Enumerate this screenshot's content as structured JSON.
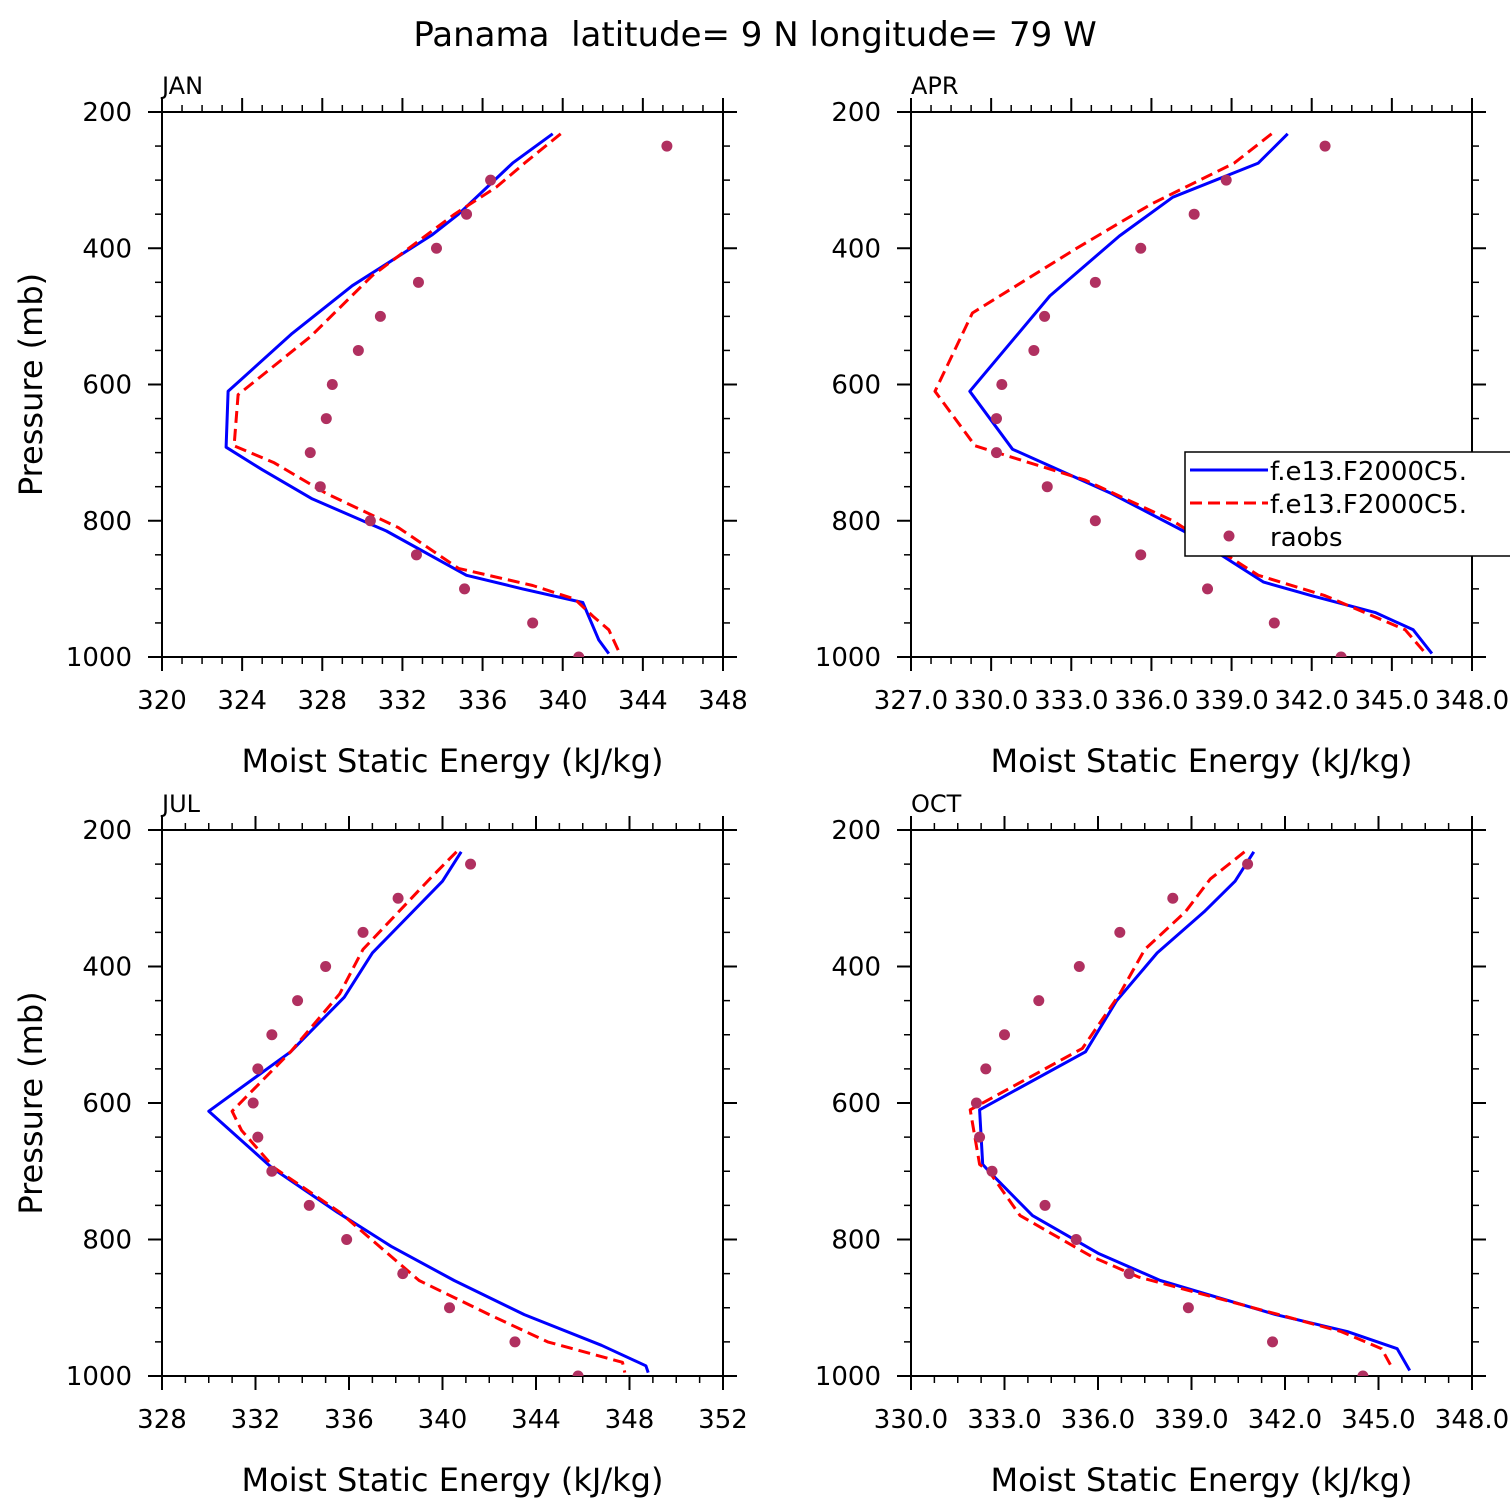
{
  "figure_title": "Panama  latitude= 9 N longitude= 79 W",
  "legend": {
    "entries": [
      {
        "label": "f.e13.F2000C5.",
        "style": "solid",
        "color": "#0000ff"
      },
      {
        "label": "f.e13.F2000C5.",
        "style": "dashed",
        "color": "#ff0000"
      },
      {
        "label": "raobs",
        "style": "dot",
        "color": "#b03060"
      }
    ],
    "placement": "right-middle of APR panel"
  },
  "colors": {
    "model_solid": "#0000ff",
    "model_dashed": "#ff0000",
    "raobs": "#b03060"
  },
  "chart_data": [
    {
      "type": "line",
      "panel_label": "JAN",
      "xlabel": "Moist Static Energy (kJ/kg)",
      "ylabel": "Pressure (mb)",
      "xlim": [
        320,
        348
      ],
      "ylim": [
        1000,
        200
      ],
      "xticks": [
        320,
        324,
        328,
        332,
        336,
        340,
        344,
        348
      ],
      "xtick_labels": [
        "320",
        "324",
        "328",
        "332",
        "336",
        "340",
        "344",
        "348"
      ],
      "yticks": [
        200,
        400,
        600,
        800,
        1000
      ],
      "ytick_labels": [
        "200",
        "400",
        "600",
        "800",
        "1000"
      ],
      "series": [
        {
          "style": "solid",
          "x": [
            339.5,
            337.5,
            334.8,
            333.5,
            329.5,
            326.5,
            323.3,
            323.2,
            325.0,
            327.5,
            331.2,
            335.2,
            338.0,
            341.0,
            341.8,
            342.3
          ],
          "y": [
            232,
            275,
            350,
            380,
            455,
            525,
            610,
            692,
            725,
            768,
            815,
            880,
            900,
            920,
            975,
            995
          ]
        },
        {
          "style": "dashed",
          "x": [
            339.9,
            338.1,
            336.7,
            334.6,
            330.5,
            327.4,
            323.8,
            323.6,
            325.6,
            328.2,
            331.8,
            334.8,
            338.5,
            340.6,
            341.5,
            342.3,
            342.8
          ],
          "y": [
            232,
            275,
            310,
            350,
            440,
            530,
            615,
            690,
            715,
            760,
            810,
            870,
            895,
            915,
            940,
            960,
            992
          ]
        },
        {
          "style": "dot",
          "x": [
            345.2,
            336.4,
            335.2,
            333.7,
            332.8,
            330.9,
            329.8,
            328.5,
            328.2,
            327.4,
            327.9,
            330.4,
            332.7,
            335.1,
            338.5,
            340.8
          ],
          "y": [
            250,
            300,
            350,
            400,
            450,
            500,
            550,
            600,
            650,
            700,
            750,
            800,
            850,
            900,
            950,
            1000
          ]
        }
      ]
    },
    {
      "type": "line",
      "panel_label": "APR",
      "xlabel": "Moist Static Energy (kJ/kg)",
      "ylabel": "",
      "xlim": [
        327.0,
        348.0
      ],
      "ylim": [
        1000,
        200
      ],
      "xticks": [
        327,
        330,
        333,
        336,
        339,
        342,
        345,
        348
      ],
      "xtick_labels": [
        "327.0",
        "330.0",
        "333.0",
        "336.0",
        "339.0",
        "342.0",
        "345.0",
        "348.0"
      ],
      "yticks": [
        200,
        400,
        600,
        800,
        1000
      ],
      "ytick_labels": [
        "200",
        "400",
        "600",
        "800",
        "1000"
      ],
      "series": [
        {
          "style": "solid",
          "x": [
            341.1,
            340.0,
            336.8,
            334.8,
            332.2,
            329.2,
            330.8,
            334.5,
            337.2,
            340.2,
            342.0,
            344.4,
            345.8,
            346.5
          ],
          "y": [
            232,
            275,
            325,
            382,
            470,
            610,
            695,
            760,
            815,
            890,
            910,
            935,
            960,
            995
          ]
        },
        {
          "style": "dashed",
          "x": [
            340.5,
            339.1,
            336.0,
            333.2,
            329.3,
            327.9,
            329.4,
            333.5,
            336.8,
            340.0,
            342.5,
            344.0,
            345.5,
            346.2
          ],
          "y": [
            232,
            275,
            335,
            400,
            495,
            610,
            690,
            740,
            800,
            880,
            910,
            935,
            960,
            992
          ]
        },
        {
          "style": "dot",
          "x": [
            342.5,
            338.8,
            337.6,
            335.6,
            333.9,
            332.0,
            331.6,
            330.4,
            330.2,
            330.2,
            332.1,
            333.9,
            335.6,
            338.1,
            340.6,
            343.1
          ],
          "y": [
            250,
            300,
            350,
            400,
            450,
            500,
            550,
            600,
            650,
            700,
            750,
            800,
            850,
            900,
            950,
            1000
          ]
        }
      ]
    },
    {
      "type": "line",
      "panel_label": "JUL",
      "xlabel": "Moist Static Energy (kJ/kg)",
      "ylabel": "Pressure (mb)",
      "xlim": [
        328,
        352
      ],
      "ylim": [
        1000,
        200
      ],
      "xticks": [
        328,
        332,
        336,
        340,
        344,
        348,
        352
      ],
      "xtick_labels": [
        "328",
        "332",
        "336",
        "340",
        "344",
        "348",
        "352"
      ],
      "yticks": [
        200,
        400,
        600,
        800,
        1000
      ],
      "ytick_labels": [
        "200",
        "400",
        "600",
        "800",
        "1000"
      ],
      "series": [
        {
          "style": "solid",
          "x": [
            340.8,
            340.0,
            337.0,
            335.8,
            333.5,
            330.0,
            332.7,
            335.5,
            337.8,
            340.5,
            343.5,
            346.8,
            348.7,
            348.8
          ],
          "y": [
            232,
            275,
            380,
            445,
            525,
            612,
            695,
            760,
            810,
            860,
            910,
            955,
            985,
            995
          ]
        },
        {
          "style": "dashed",
          "x": [
            340.6,
            339.5,
            336.6,
            335.6,
            333.5,
            331.0,
            331.4,
            332.8,
            335.6,
            339.0,
            342.0,
            344.5,
            347.7,
            347.8
          ],
          "y": [
            232,
            270,
            375,
            440,
            525,
            612,
            640,
            695,
            760,
            860,
            910,
            950,
            980,
            995
          ]
        },
        {
          "style": "dot",
          "x": [
            341.2,
            338.1,
            336.6,
            335.0,
            333.8,
            332.7,
            332.1,
            331.9,
            332.1,
            332.7,
            334.3,
            335.9,
            338.3,
            340.3,
            343.1,
            345.8
          ],
          "y": [
            250,
            300,
            350,
            400,
            450,
            500,
            550,
            600,
            650,
            700,
            750,
            800,
            850,
            900,
            950,
            1000
          ]
        }
      ]
    },
    {
      "type": "line",
      "panel_label": "OCT",
      "xlabel": "Moist Static Energy (kJ/kg)",
      "ylabel": "",
      "xlim": [
        330.0,
        348.0
      ],
      "ylim": [
        1000,
        200
      ],
      "xticks": [
        330,
        333,
        336,
        339,
        342,
        345,
        348
      ],
      "xtick_labels": [
        "330.0",
        "333.0",
        "336.0",
        "339.0",
        "342.0",
        "345.0",
        "348.0"
      ],
      "yticks": [
        200,
        400,
        600,
        800,
        1000
      ],
      "ytick_labels": [
        "200",
        "400",
        "600",
        "800",
        "1000"
      ],
      "series": [
        {
          "style": "solid",
          "x": [
            341.0,
            340.4,
            339.4,
            337.9,
            336.6,
            335.6,
            332.2,
            332.3,
            332.5,
            333.9,
            336.0,
            338.0,
            341.7,
            344.0,
            345.6,
            346.0
          ],
          "y": [
            232,
            275,
            320,
            380,
            450,
            525,
            610,
            690,
            700,
            765,
            820,
            860,
            910,
            935,
            960,
            992
          ]
        },
        {
          "style": "dashed",
          "x": [
            340.7,
            339.6,
            338.8,
            337.5,
            336.7,
            335.5,
            331.9,
            332.2,
            332.5,
            333.5,
            335.8,
            337.3,
            341.8,
            343.8,
            345.1,
            345.4
          ],
          "y": [
            232,
            272,
            320,
            375,
            440,
            520,
            610,
            690,
            700,
            765,
            825,
            855,
            910,
            935,
            960,
            985
          ]
        },
        {
          "style": "dot",
          "x": [
            340.8,
            338.4,
            336.7,
            335.4,
            334.1,
            333.0,
            332.4,
            332.1,
            332.2,
            332.6,
            334.3,
            335.3,
            337.0,
            338.9,
            341.6,
            344.5
          ],
          "y": [
            250,
            300,
            350,
            400,
            450,
            500,
            550,
            600,
            650,
            700,
            750,
            800,
            850,
            900,
            950,
            1000
          ]
        }
      ]
    }
  ]
}
